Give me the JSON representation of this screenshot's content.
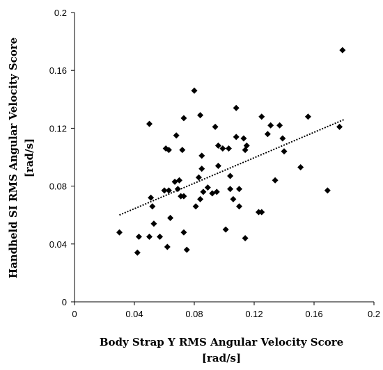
{
  "chart_data": {
    "type": "scatter",
    "title": "",
    "xlabel_line1": "Body Strap Y RMS Angular Velocity Score",
    "xlabel_line2": "[rad/s]",
    "ylabel_line1": "Handheld SI RMS Angular Velocity Score",
    "ylabel_line2": "[rad/s]",
    "xlim": [
      0,
      0.2
    ],
    "ylim": [
      0,
      0.2
    ],
    "x_ticks": [
      "0",
      "0.04",
      "0.08",
      "0.12",
      "0.16",
      "0.2"
    ],
    "y_ticks": [
      "0",
      "0.04",
      "0.08",
      "0.12",
      "0.16",
      "0.2"
    ],
    "grid": false,
    "marker": "diamond",
    "marker_color": "#000000",
    "trendline": {
      "style": "dotted",
      "x": [
        0.03,
        0.18
      ],
      "y": [
        0.06,
        0.126
      ]
    },
    "points": [
      [
        0.03,
        0.048
      ],
      [
        0.042,
        0.034
      ],
      [
        0.043,
        0.045
      ],
      [
        0.05,
        0.123
      ],
      [
        0.05,
        0.045
      ],
      [
        0.051,
        0.072
      ],
      [
        0.052,
        0.066
      ],
      [
        0.053,
        0.054
      ],
      [
        0.057,
        0.045
      ],
      [
        0.06,
        0.077
      ],
      [
        0.061,
        0.106
      ],
      [
        0.062,
        0.038
      ],
      [
        0.063,
        0.105
      ],
      [
        0.063,
        0.077
      ],
      [
        0.064,
        0.058
      ],
      [
        0.067,
        0.083
      ],
      [
        0.068,
        0.115
      ],
      [
        0.069,
        0.078
      ],
      [
        0.07,
        0.084
      ],
      [
        0.071,
        0.073
      ],
      [
        0.072,
        0.105
      ],
      [
        0.073,
        0.127
      ],
      [
        0.073,
        0.073
      ],
      [
        0.073,
        0.048
      ],
      [
        0.075,
        0.036
      ],
      [
        0.08,
        0.146
      ],
      [
        0.081,
        0.066
      ],
      [
        0.083,
        0.086
      ],
      [
        0.084,
        0.071
      ],
      [
        0.084,
        0.129
      ],
      [
        0.085,
        0.101
      ],
      [
        0.085,
        0.092
      ],
      [
        0.086,
        0.076
      ],
      [
        0.089,
        0.079
      ],
      [
        0.092,
        0.075
      ],
      [
        0.094,
        0.121
      ],
      [
        0.095,
        0.076
      ],
      [
        0.096,
        0.108
      ],
      [
        0.096,
        0.094
      ],
      [
        0.099,
        0.106
      ],
      [
        0.101,
        0.05
      ],
      [
        0.103,
        0.106
      ],
      [
        0.104,
        0.087
      ],
      [
        0.104,
        0.078
      ],
      [
        0.106,
        0.071
      ],
      [
        0.108,
        0.114
      ],
      [
        0.108,
        0.134
      ],
      [
        0.11,
        0.078
      ],
      [
        0.11,
        0.066
      ],
      [
        0.113,
        0.113
      ],
      [
        0.114,
        0.105
      ],
      [
        0.115,
        0.108
      ],
      [
        0.114,
        0.044
      ],
      [
        0.123,
        0.062
      ],
      [
        0.125,
        0.062
      ],
      [
        0.125,
        0.128
      ],
      [
        0.129,
        0.116
      ],
      [
        0.131,
        0.122
      ],
      [
        0.134,
        0.084
      ],
      [
        0.137,
        0.122
      ],
      [
        0.139,
        0.113
      ],
      [
        0.14,
        0.104
      ],
      [
        0.151,
        0.093
      ],
      [
        0.156,
        0.128
      ],
      [
        0.169,
        0.077
      ],
      [
        0.177,
        0.121
      ],
      [
        0.179,
        0.174
      ]
    ]
  }
}
